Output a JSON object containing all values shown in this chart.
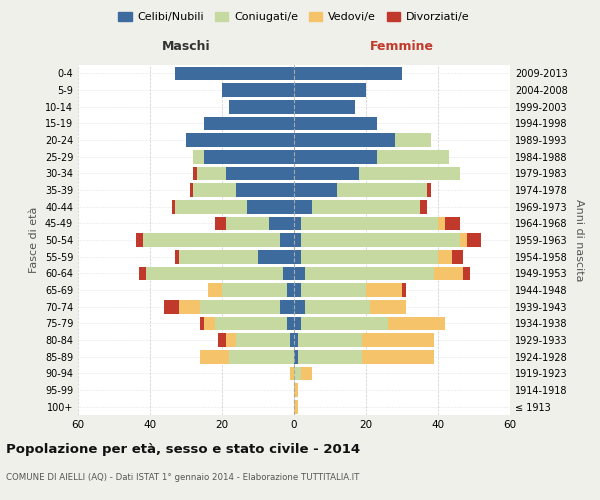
{
  "age_groups": [
    "100+",
    "95-99",
    "90-94",
    "85-89",
    "80-84",
    "75-79",
    "70-74",
    "65-69",
    "60-64",
    "55-59",
    "50-54",
    "45-49",
    "40-44",
    "35-39",
    "30-34",
    "25-29",
    "20-24",
    "15-19",
    "10-14",
    "5-9",
    "0-4"
  ],
  "birth_years": [
    "≤ 1913",
    "1914-1918",
    "1919-1923",
    "1924-1928",
    "1929-1933",
    "1934-1938",
    "1939-1943",
    "1944-1948",
    "1949-1953",
    "1954-1958",
    "1959-1963",
    "1964-1968",
    "1969-1973",
    "1974-1978",
    "1979-1983",
    "1984-1988",
    "1989-1993",
    "1994-1998",
    "1999-2003",
    "2004-2008",
    "2009-2013"
  ],
  "males": {
    "celibi": [
      0,
      0,
      0,
      0,
      1,
      2,
      4,
      2,
      3,
      10,
      4,
      7,
      13,
      16,
      19,
      25,
      30,
      25,
      18,
      20,
      33
    ],
    "coniugati": [
      0,
      0,
      0,
      18,
      15,
      20,
      22,
      18,
      38,
      22,
      38,
      12,
      20,
      12,
      8,
      3,
      0,
      0,
      0,
      0,
      0
    ],
    "vedovi": [
      0,
      0,
      1,
      8,
      3,
      3,
      6,
      4,
      0,
      0,
      0,
      0,
      0,
      0,
      0,
      0,
      0,
      0,
      0,
      0,
      0
    ],
    "divorziati": [
      0,
      0,
      0,
      0,
      2,
      1,
      4,
      0,
      2,
      1,
      2,
      3,
      1,
      1,
      1,
      0,
      0,
      0,
      0,
      0,
      0
    ]
  },
  "females": {
    "nubili": [
      0,
      0,
      0,
      1,
      1,
      2,
      3,
      2,
      3,
      2,
      2,
      2,
      5,
      12,
      18,
      23,
      28,
      23,
      17,
      20,
      30
    ],
    "coniugate": [
      0,
      0,
      2,
      18,
      18,
      24,
      18,
      18,
      36,
      38,
      44,
      38,
      30,
      25,
      28,
      20,
      10,
      0,
      0,
      0,
      0
    ],
    "vedove": [
      1,
      1,
      3,
      20,
      20,
      16,
      10,
      10,
      8,
      4,
      2,
      2,
      0,
      0,
      0,
      0,
      0,
      0,
      0,
      0,
      0
    ],
    "divorziate": [
      0,
      0,
      0,
      0,
      0,
      0,
      0,
      1,
      2,
      3,
      4,
      4,
      2,
      1,
      0,
      0,
      0,
      0,
      0,
      0,
      0
    ]
  },
  "colors": {
    "celibi_nubili": "#3d6b9e",
    "coniugati": "#c5d9a0",
    "vedovi": "#f5c36a",
    "divorziati": "#c0392b"
  },
  "xlim": 60,
  "title": "Popolazione per età, sesso e stato civile - 2014",
  "subtitle": "COMUNE DI AIELLI (AQ) - Dati ISTAT 1° gennaio 2014 - Elaborazione TUTTITALIA.IT",
  "ylabel_left": "Fasce di età",
  "ylabel_right": "Anni di nascita",
  "xlabel_left": "Maschi",
  "xlabel_right": "Femmine",
  "bg_color": "#f0f0eb",
  "plot_bg": "#ffffff"
}
